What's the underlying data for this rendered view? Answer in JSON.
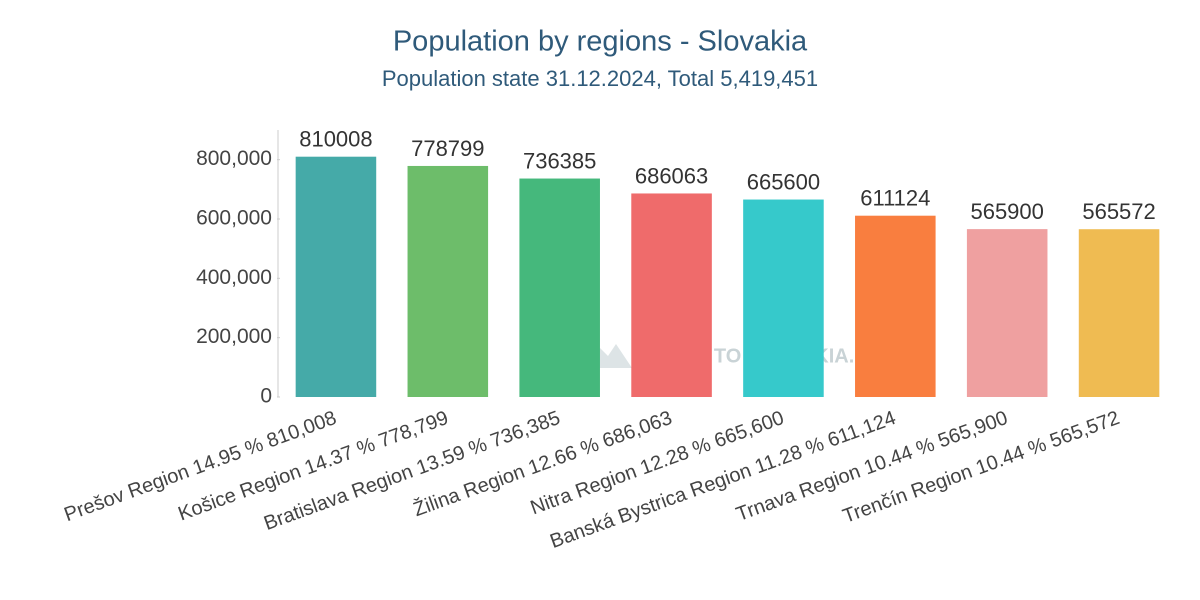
{
  "chart_data": {
    "type": "bar",
    "title": "Population by regions - Slovakia",
    "subtitle": "Population state 31.12.2024, Total 5,419,451",
    "watermark": "GUIDE TO SLOVAKIA.COM",
    "categories": [
      "Prešov Region  14.95 %  810,008",
      "Košice Region  14.37 %  778,799",
      "Bratislava Region  13.59 %  736,385",
      "Žilina Region  12.66 %  686,063",
      "Nitra Region  12.28 %  665,600",
      "Banská Bystrica Region  11.28 %  611,124",
      "Trnava Region  10.44 %  565,900",
      "Trenčín Region  10.44 %  565,572"
    ],
    "values": [
      810008,
      778799,
      736385,
      686063,
      665600,
      611124,
      565900,
      565572
    ],
    "colors": [
      "#45aaa8",
      "#6dbd6a",
      "#45b87c",
      "#ef6b6b",
      "#36c9cb",
      "#f97e3f",
      "#efa0a0",
      "#efbb52"
    ],
    "ylim": [
      0,
      900000
    ],
    "yticks": [
      0,
      {
        "value": 200000,
        "label": "200,000"
      },
      {
        "value": 400000,
        "label": "400,000"
      },
      {
        "value": 600000,
        "label": "600,000"
      },
      {
        "value": 800000,
        "label": "800,000"
      }
    ],
    "grid": false
  }
}
